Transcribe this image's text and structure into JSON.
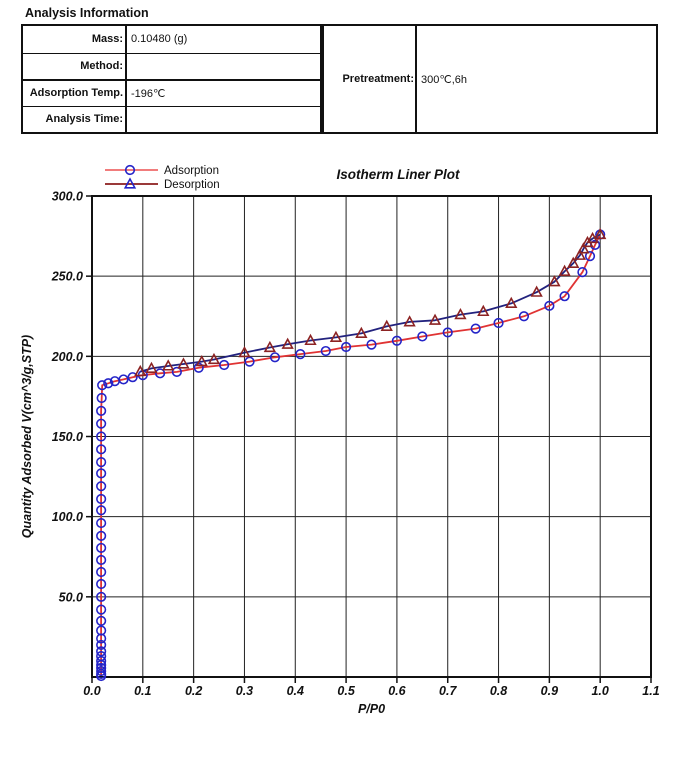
{
  "header": {
    "title": "Analysis Information"
  },
  "info_table": {
    "rows": [
      {
        "label": "Mass:",
        "value": "0.10480 (g)"
      },
      {
        "label": "Method:",
        "value": ""
      },
      {
        "label": "Adsorption Temp.",
        "value": "-196℃"
      },
      {
        "label": "Analysis Time:",
        "value": ""
      }
    ],
    "pretreatment_label": "Pretreatment:",
    "pretreatment_value": "300℃,6h"
  },
  "chart_data": {
    "type": "line",
    "title": "Isotherm Liner Plot",
    "xlabel": "P/P0",
    "ylabel": "Quantity Adsorbed V(cm^3/g,STP)",
    "xlim": [
      0,
      1.1
    ],
    "ylim": [
      0,
      300
    ],
    "xticks": [
      0.0,
      0.1,
      0.2,
      0.3,
      0.4,
      0.5,
      0.6,
      0.7,
      0.8,
      0.9,
      1.0,
      1.1
    ],
    "yticks": [
      50,
      100,
      150,
      200,
      250,
      300
    ],
    "grid": true,
    "legend_position": "top-left",
    "axis_color": "#111111",
    "grid_color": "#222222",
    "series": [
      {
        "name": "Adsorption",
        "marker": "circle",
        "line_color": "#e03333",
        "marker_color": "#2424c8",
        "legend_line_color": "#ef6a6a",
        "legend_marker_color": "#2424c8",
        "points": [
          [
            0.018,
            0.6
          ],
          [
            0.018,
            1.9
          ],
          [
            0.018,
            3.7
          ],
          [
            0.018,
            5.6
          ],
          [
            0.018,
            7.5
          ],
          [
            0.018,
            10
          ],
          [
            0.018,
            13
          ],
          [
            0.018,
            16
          ],
          [
            0.018,
            20
          ],
          [
            0.018,
            24
          ],
          [
            0.018,
            29
          ],
          [
            0.018,
            35
          ],
          [
            0.018,
            42
          ],
          [
            0.018,
            50
          ],
          [
            0.018,
            58
          ],
          [
            0.018,
            65.5
          ],
          [
            0.018,
            73
          ],
          [
            0.018,
            80.5
          ],
          [
            0.018,
            88
          ],
          [
            0.018,
            96
          ],
          [
            0.018,
            104
          ],
          [
            0.018,
            111
          ],
          [
            0.018,
            119
          ],
          [
            0.018,
            127
          ],
          [
            0.018,
            134
          ],
          [
            0.018,
            142
          ],
          [
            0.018,
            150
          ],
          [
            0.018,
            158
          ],
          [
            0.018,
            166
          ],
          [
            0.019,
            174
          ],
          [
            0.02,
            182
          ],
          [
            0.032,
            183.2
          ],
          [
            0.045,
            184.5
          ],
          [
            0.062,
            185.6
          ],
          [
            0.08,
            187
          ],
          [
            0.1,
            188.3
          ],
          [
            0.134,
            189.4
          ],
          [
            0.167,
            190.3
          ],
          [
            0.21,
            192.9
          ],
          [
            0.26,
            194.6
          ],
          [
            0.31,
            196.7
          ],
          [
            0.36,
            199.4
          ],
          [
            0.41,
            201.4
          ],
          [
            0.46,
            203.3
          ],
          [
            0.5,
            205.8
          ],
          [
            0.55,
            207.3
          ],
          [
            0.6,
            209.7
          ],
          [
            0.65,
            212.4
          ],
          [
            0.7,
            214.9
          ],
          [
            0.755,
            217.3
          ],
          [
            0.8,
            220.8
          ],
          [
            0.85,
            225
          ],
          [
            0.9,
            231.5
          ],
          [
            0.93,
            237.5
          ],
          [
            0.965,
            252.5
          ],
          [
            0.98,
            262.5
          ],
          [
            0.99,
            269.5
          ],
          [
            1.0,
            276
          ]
        ]
      },
      {
        "name": "Desorption",
        "marker": "triangle",
        "line_color": "#22227e",
        "marker_color": "#8c2323",
        "legend_line_color": "#8c1d1d",
        "legend_marker_color": "#2424c8",
        "points": [
          [
            0.095,
            190.5
          ],
          [
            0.117,
            192.5
          ],
          [
            0.15,
            194
          ],
          [
            0.18,
            195.2
          ],
          [
            0.216,
            196.7
          ],
          [
            0.24,
            198
          ],
          [
            0.3,
            202.3
          ],
          [
            0.35,
            205.5
          ],
          [
            0.385,
            207.5
          ],
          [
            0.43,
            209.9
          ],
          [
            0.48,
            211.8
          ],
          [
            0.53,
            214.3
          ],
          [
            0.58,
            218.7
          ],
          [
            0.625,
            221.5
          ],
          [
            0.675,
            222.5
          ],
          [
            0.725,
            226
          ],
          [
            0.77,
            228
          ],
          [
            0.825,
            233
          ],
          [
            0.875,
            240
          ],
          [
            0.91,
            246.5
          ],
          [
            0.93,
            253
          ],
          [
            0.947,
            258
          ],
          [
            0.96,
            263
          ],
          [
            0.967,
            267
          ],
          [
            0.975,
            271
          ],
          [
            0.985,
            273.5
          ],
          [
            1.0,
            276
          ]
        ]
      }
    ]
  }
}
